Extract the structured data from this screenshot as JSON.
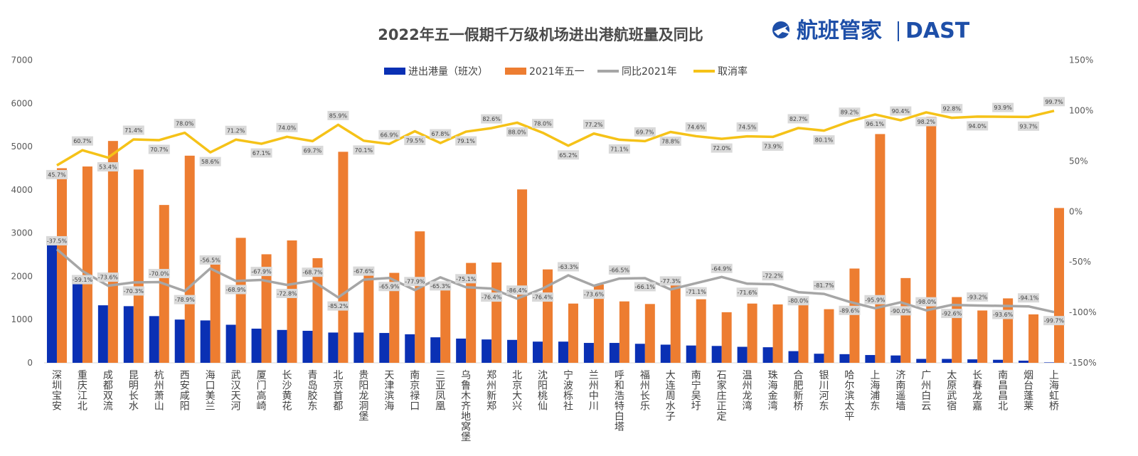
{
  "title": "2022年五一假期千万级机场进出港航班量及同比",
  "brand": {
    "name_cn": "航班管家",
    "name_en": "DAST",
    "color": "#1e4fa8"
  },
  "chart_data": {
    "type": "bar",
    "categories": [
      "深圳宝安",
      "重庆江北",
      "成都双流",
      "昆明长水",
      "杭州萧山",
      "西安咸阳",
      "海口美兰",
      "武汉天河",
      "厦门高崎",
      "长沙黄花",
      "青岛胶东",
      "北京首都",
      "贵阳龙洞堡",
      "天津滨海",
      "南京禄口",
      "三亚凤凰",
      "乌鲁木齐地窝堡",
      "郑州新郑",
      "北京大兴",
      "沈阳桃仙",
      "宁波栎社",
      "兰州中川",
      "呼和浩特白塔",
      "福州长乐",
      "大连周水子",
      "南宁吴圩",
      "石家庄正定",
      "温州龙湾",
      "珠海金湾",
      "合肥新桥",
      "银川河东",
      "哈尔滨太平",
      "上海浦东",
      "济南遥墙",
      "广州白云",
      "太原武宿",
      "长春龙嘉",
      "南昌昌北",
      "烟台蓬莱",
      "上海虹桥"
    ],
    "series": [
      {
        "name": "进出港量（班次）",
        "type": "bar",
        "axis": "left",
        "color": "#0a30b4",
        "values": [
          2800,
          1840,
          1330,
          1310,
          1080,
          1000,
          980,
          880,
          790,
          760,
          740,
          700,
          700,
          690,
          660,
          590,
          560,
          540,
          530,
          490,
          490,
          460,
          460,
          440,
          420,
          400,
          390,
          370,
          360,
          270,
          210,
          200,
          180,
          170,
          90,
          90,
          80,
          70,
          50,
          10
        ]
      },
      {
        "name": "2021年五一",
        "type": "bar",
        "axis": "left",
        "color": "#ed7d31",
        "values": [
          4500,
          4540,
          5130,
          4470,
          3650,
          4790,
          2270,
          2890,
          2510,
          2830,
          2420,
          4880,
          2210,
          2080,
          3040,
          1780,
          2310,
          2320,
          4010,
          2160,
          1370,
          1810,
          1420,
          1360,
          1950,
          1470,
          1170,
          1370,
          1350,
          1420,
          1240,
          2180,
          5290,
          1960,
          5690,
          1520,
          1210,
          1490,
          1120,
          3580
        ]
      },
      {
        "name": "同比2021年",
        "type": "line",
        "axis": "right",
        "color": "#a6a6a6",
        "values": [
          -37.5,
          -59.1,
          -73.6,
          -70.3,
          -70.0,
          -78.9,
          -56.5,
          -68.9,
          -67.9,
          -72.8,
          -68.7,
          -85.2,
          -67.6,
          -65.9,
          -77.9,
          -65.3,
          -75.1,
          -76.4,
          -86.4,
          -76.4,
          -63.3,
          -73.6,
          -66.5,
          -66.1,
          -77.3,
          -71.1,
          -64.9,
          -71.6,
          -72.2,
          -80.0,
          -81.7,
          -89.6,
          -95.9,
          -90.0,
          -98.0,
          -92.6,
          -93.2,
          -93.6,
          -94.1,
          -99.7
        ],
        "labels": [
          "-37.5%",
          "-59.1%",
          "-73.6%",
          "-70.3%",
          "-70.0%",
          "-78.9%",
          "-56.5%",
          "-68.9%",
          "-67.9%",
          "-72.8%",
          "-68.7%",
          "-85.2%",
          "-67.6%",
          "-65.9%",
          "-77.9%",
          "-65.3%",
          "-75.1%",
          "-76.4%",
          "-86.4%",
          "-76.4%",
          "-63.3%",
          "-73.6%",
          "-66.5%",
          "-66.1%",
          "-77.3%",
          "-71.1%",
          "-64.9%",
          "-71.6%",
          "-72.2%",
          "-80.0%",
          "-81.7%",
          "-89.6%",
          "-95.9%",
          "-90.0%",
          "-98.0%",
          "-92.6%",
          "-93.2%",
          "-93.6%",
          "-94.1%",
          "-99.7%"
        ]
      },
      {
        "name": "取消率",
        "type": "line",
        "axis": "right",
        "color": "#f5c218",
        "values": [
          45.7,
          60.7,
          53.4,
          71.4,
          70.7,
          78.0,
          58.6,
          71.2,
          67.1,
          74.0,
          69.7,
          85.9,
          70.1,
          66.9,
          79.5,
          67.8,
          79.1,
          82.6,
          88.0,
          78.0,
          65.2,
          77.2,
          71.1,
          69.7,
          78.8,
          74.6,
          72.0,
          74.5,
          73.9,
          82.7,
          80.1,
          89.2,
          96.1,
          90.4,
          98.2,
          92.8,
          94.0,
          93.9,
          93.7,
          99.7
        ],
        "labels": [
          "45.7%",
          "60.7%",
          "53.4%",
          "71.4%",
          "70.7%",
          "78.0%",
          "58.6%",
          "71.2%",
          "67.1%",
          "74.0%",
          "69.7%",
          "85.9%",
          "70.1%",
          "66.9%",
          "79.5%",
          "67.8%",
          "79.1%",
          "82.6%",
          "88.0%",
          "78.0%",
          "65.2%",
          "77.2%",
          "71.1%",
          "69.7%",
          "78.8%",
          "74.6%",
          "72.0%",
          "74.5%",
          "73.9%",
          "82.7%",
          "80.1%",
          "89.2%",
          "96.1%",
          "90.4%",
          "98.2%",
          "92.8%",
          "94.0%",
          "93.9%",
          "93.7%",
          "99.7%"
        ]
      }
    ],
    "y_left": {
      "min": 0,
      "max": 7000,
      "ticks": [
        "0",
        "1000",
        "2000",
        "3000",
        "4000",
        "5000",
        "6000",
        "7000"
      ]
    },
    "y_right": {
      "min": -150,
      "max": 150,
      "ticks": [
        "-150%",
        "-100%",
        "-50%",
        "0%",
        "50%",
        "100%",
        "150%"
      ]
    },
    "legend_position": "top",
    "grid": false
  }
}
